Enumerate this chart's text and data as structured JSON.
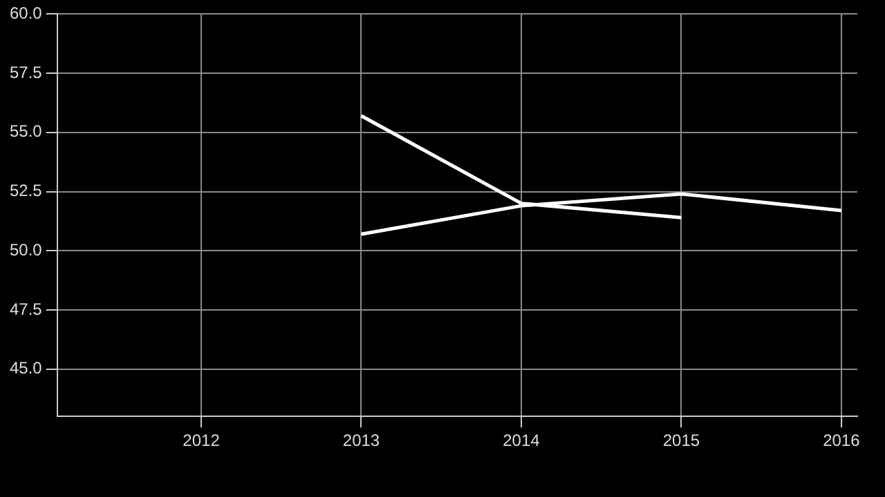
{
  "chart_data": {
    "type": "line",
    "x": [
      2013,
      2014,
      2015,
      2016
    ],
    "series": [
      {
        "color": "#ffffff",
        "values": [
          55.7,
          52.0,
          51.4,
          null
        ]
      },
      {
        "color": "#ffffff",
        "values": [
          50.7,
          51.9,
          52.4,
          51.7
        ]
      }
    ],
    "xlim": [
      2011.1,
      2016.1
    ],
    "xticks": [
      2012,
      2013,
      2014,
      2015,
      2016
    ],
    "ylim": [
      43,
      60
    ],
    "yticks": [
      {
        "value": 45,
        "label": "45.0"
      },
      {
        "value": 47.5,
        "label": "47.5"
      },
      {
        "value": 50,
        "label": "50.0"
      },
      {
        "value": 52.5,
        "label": "52.5"
      },
      {
        "value": 55,
        "label": "55.0"
      },
      {
        "value": 57.5,
        "label": "57.5"
      },
      {
        "value": 60,
        "label": "60.0"
      }
    ],
    "grid": true,
    "legend": false,
    "marker": "none",
    "line_style": "solid"
  }
}
